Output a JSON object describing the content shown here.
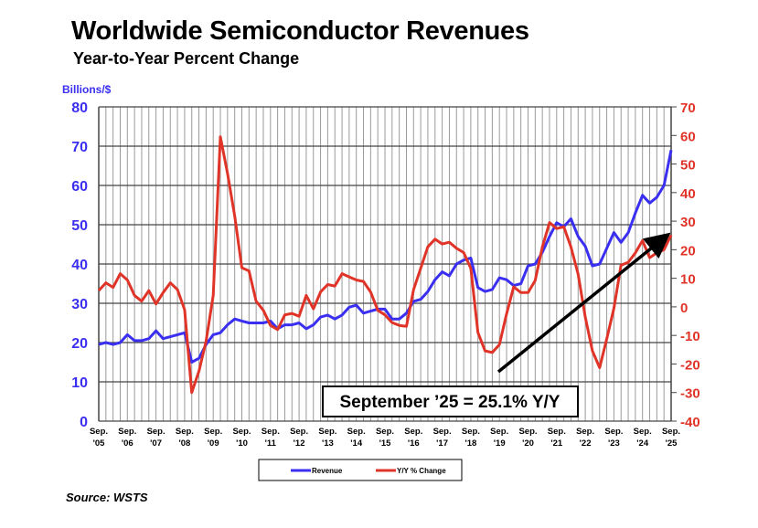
{
  "title": "Worldwide Semiconductor Revenues",
  "subtitle": "Year-to-Year Percent Change",
  "source": "Source: WSTS",
  "annotation": "September ’25 = 25.1% Y/Y",
  "colors": {
    "revenue": "#3a2ff0",
    "yoy": "#e03428",
    "grid": "#9a9a9a"
  },
  "chart_data": {
    "type": "line",
    "ylabel": "Billions/$",
    "ylim": [
      0,
      80
    ],
    "y2lim": [
      -40,
      70
    ],
    "yticks": [
      0,
      10,
      20,
      30,
      40,
      50,
      60,
      70,
      80
    ],
    "y2ticks": [
      -40,
      -30,
      -20,
      -10,
      0,
      10,
      20,
      30,
      40,
      50,
      60,
      70
    ],
    "xticks": [
      [
        "Sep.",
        "'05"
      ],
      [
        "Sep.",
        "'06"
      ],
      [
        "Sep.",
        "'07"
      ],
      [
        "Sep.",
        "'08"
      ],
      [
        "Sep.",
        "'09"
      ],
      [
        "Sep.",
        "'10"
      ],
      [
        "Sep.",
        "'11"
      ],
      [
        "Sep.",
        "'12"
      ],
      [
        "Sep.",
        "'13"
      ],
      [
        "Sep.",
        "'14"
      ],
      [
        "Sep.",
        "'15"
      ],
      [
        "Sep.",
        "'16"
      ],
      [
        "Sep.",
        "'17"
      ],
      [
        "Sep.",
        "'18"
      ],
      [
        "Sep.",
        "'19"
      ],
      [
        "Sep.",
        "'20"
      ],
      [
        "Sep.",
        "'21"
      ],
      [
        "Sep.",
        "'22"
      ],
      [
        "Sep.",
        "'23"
      ],
      [
        "Sep.",
        "'24"
      ],
      [
        "Sep.",
        "'25"
      ]
    ],
    "x_note": "quarterly points from Sep 2005 to Sep 2025",
    "grid": true,
    "legend": "bottom-center",
    "series": [
      {
        "name": "Revenue",
        "axis": "left",
        "values": [
          19.5,
          20,
          19.5,
          20,
          22,
          20.5,
          20.5,
          21,
          23,
          21,
          21.5,
          22,
          22.5,
          15,
          16,
          19.5,
          22,
          22.5,
          24.5,
          26,
          25.5,
          25,
          25,
          25,
          25.5,
          23.5,
          24.5,
          24.5,
          25,
          23.5,
          24.5,
          26.5,
          27,
          26,
          27,
          29,
          29.5,
          27.5,
          28,
          28.5,
          28.5,
          26,
          26,
          27.5,
          30.5,
          31,
          33,
          36,
          38,
          37,
          40,
          41,
          41.5,
          34,
          33,
          33.5,
          36.5,
          36,
          34.5,
          35,
          39.5,
          40,
          43,
          47,
          50.5,
          49.5,
          51.5,
          47,
          44.5,
          39.5,
          40,
          44,
          48,
          45.5,
          48,
          53,
          57.5,
          55.5,
          57,
          60,
          69
        ]
      },
      {
        "name": "Y/Y % Change",
        "axis": "right",
        "values": [
          5.7,
          8.4,
          6.8,
          11.6,
          9.4,
          4,
          2,
          5.7,
          1,
          5,
          8.4,
          6,
          -1,
          -30,
          -22.5,
          -12,
          4,
          59.5,
          46.8,
          31.8,
          13.7,
          12.6,
          2,
          -1.2,
          -6.5,
          -8,
          -2.8,
          -2.3,
          -3.3,
          4,
          -0.7,
          5.2,
          7.8,
          7.3,
          11.6,
          10.5,
          9.4,
          8.9,
          5.2,
          -1.2,
          -2.8,
          -5.5,
          -6.5,
          -6.8,
          6,
          13.5,
          21,
          23.7,
          22,
          22.6,
          20.5,
          19,
          13.5,
          -9,
          -15.4,
          -16,
          -13.2,
          -2.5,
          7,
          5,
          5,
          9.2,
          21,
          29.5,
          27.4,
          28,
          21,
          11.4,
          -3.6,
          -15.4,
          -21.3,
          -11.2,
          -0.5,
          14.6,
          15.6,
          18.9,
          23.2,
          17.2,
          18.9,
          20,
          25.1
        ]
      }
    ]
  }
}
